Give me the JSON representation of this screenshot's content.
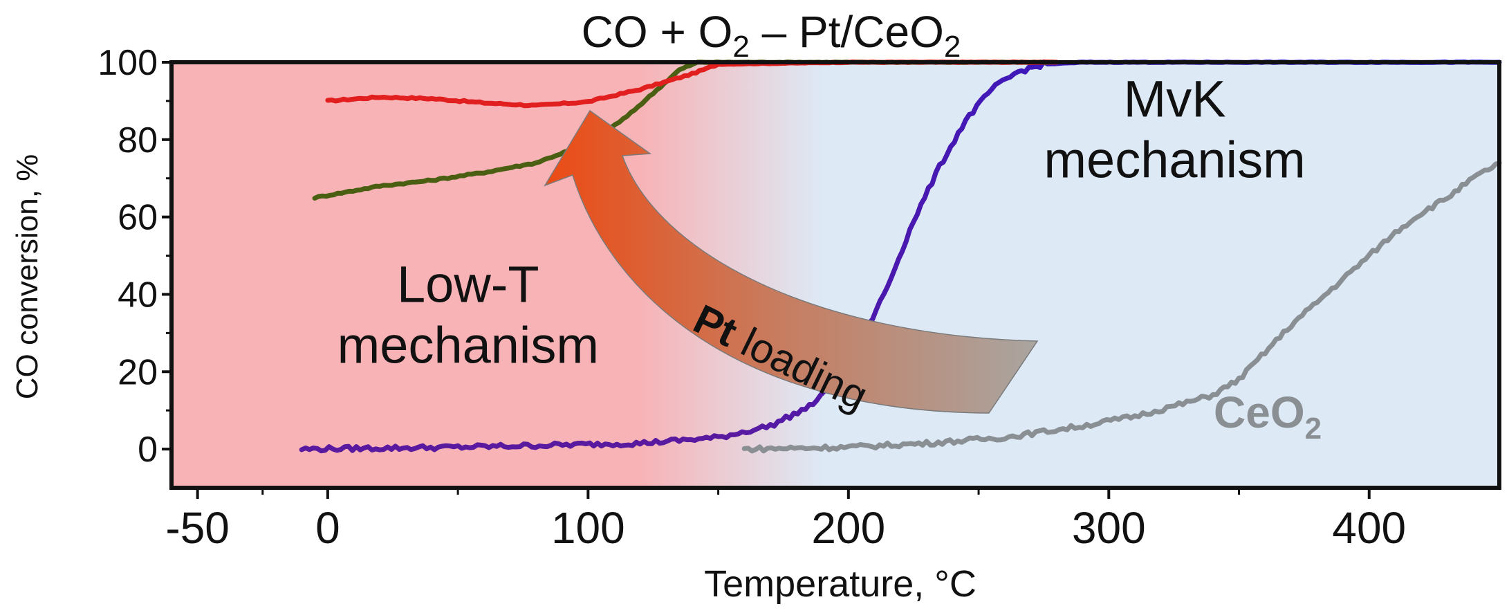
{
  "chart_data": {
    "type": "line",
    "title_parts": [
      "CO + O",
      "2",
      " – Pt/CeO",
      "2"
    ],
    "xlabel": "Temperature, °C",
    "ylabel": "CO conversion, %",
    "xlim": [
      -60,
      450
    ],
    "ylim": [
      -10,
      100
    ],
    "xticks": [
      -50,
      0,
      100,
      200,
      300,
      400
    ],
    "yticks": [
      0,
      20,
      40,
      60,
      80,
      100
    ],
    "grid": false,
    "regions": [
      {
        "label_lines": [
          "Low-T",
          "mechanism"
        ],
        "color": "#f7b3b6",
        "x_from": -60,
        "x_to": 120
      },
      {
        "label_lines": [
          "MvK",
          "mechanism"
        ],
        "color": "#dde9f5",
        "x_from": 190,
        "x_to": 450
      }
    ],
    "arrow_label": {
      "bold": "Pt",
      "rest": " loading"
    },
    "series": [
      {
        "color": "#e21f1f",
        "points": [
          [
            0,
            90
          ],
          [
            20,
            91
          ],
          [
            40,
            90.6
          ],
          [
            60,
            89.5
          ],
          [
            80,
            88.8
          ],
          [
            100,
            89.8
          ],
          [
            120,
            93
          ],
          [
            140,
            97
          ],
          [
            150,
            99.5
          ],
          [
            200,
            100
          ],
          [
            280,
            100
          ]
        ]
      },
      {
        "color": "#4a5f12",
        "points": [
          [
            -5,
            65
          ],
          [
            20,
            68
          ],
          [
            40,
            69.5
          ],
          [
            60,
            71.5
          ],
          [
            80,
            74
          ],
          [
            100,
            79
          ],
          [
            115,
            86
          ],
          [
            125,
            92
          ],
          [
            135,
            98
          ],
          [
            142,
            100
          ],
          [
            160,
            100
          ],
          [
            280,
            100
          ]
        ]
      },
      {
        "color": "#1414e0",
        "color_start": "#5a1aa0",
        "points": [
          [
            -10,
            0
          ],
          [
            50,
            0.5
          ],
          [
            120,
            1.5
          ],
          [
            150,
            3
          ],
          [
            170,
            6
          ],
          [
            185,
            11
          ],
          [
            195,
            17
          ],
          [
            205,
            28
          ],
          [
            215,
            42
          ],
          [
            225,
            59
          ],
          [
            235,
            73
          ],
          [
            245,
            85
          ],
          [
            255,
            93
          ],
          [
            265,
            97.5
          ],
          [
            275,
            99.5
          ],
          [
            290,
            100
          ],
          [
            450,
            100
          ]
        ]
      },
      {
        "name": "CeO2",
        "label_parts": [
          "CeO",
          "2"
        ],
        "color": "#8a8f94",
        "points": [
          [
            160,
            0
          ],
          [
            200,
            0.5
          ],
          [
            230,
            1.5
          ],
          [
            260,
            3
          ],
          [
            290,
            6
          ],
          [
            310,
            8.5
          ],
          [
            330,
            12
          ],
          [
            340,
            14
          ],
          [
            350,
            18
          ],
          [
            360,
            25
          ],
          [
            370,
            32
          ],
          [
            380,
            38
          ],
          [
            390,
            44
          ],
          [
            400,
            50
          ],
          [
            410,
            56
          ],
          [
            420,
            61
          ],
          [
            430,
            65
          ],
          [
            440,
            70
          ],
          [
            450,
            74
          ]
        ]
      }
    ]
  }
}
